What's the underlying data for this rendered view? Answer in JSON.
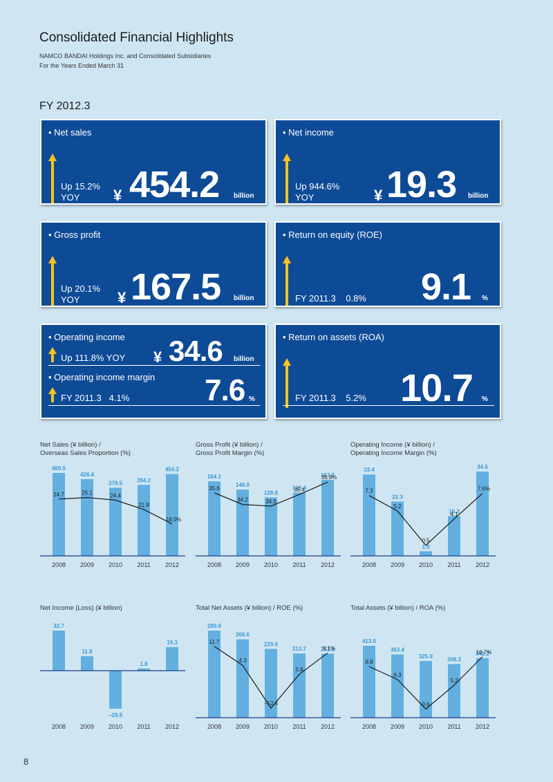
{
  "header": {
    "title": "Consolidated Financial Highlights",
    "subtitle_line1": "NAMCO BANDAI Holdings Inc. and Consolidated Subsidiaries",
    "subtitle_line2": "For the Years Ended March 31"
  },
  "fy_label": "FY 2012.3",
  "cards": {
    "net_sales": {
      "head": "• Net sales",
      "yoy1": "Up 15.2%",
      "yoy2": "YOY",
      "yen": "¥",
      "value": "454.2",
      "unit": "billion"
    },
    "net_income": {
      "head": "• Net income",
      "yoy1": "Up 944.6%",
      "yoy2": "YOY",
      "yen": "¥",
      "value": "19.3",
      "unit": "billion"
    },
    "gross_profit": {
      "head": "• Gross profit",
      "yoy1": "Up 20.1%",
      "yoy2": "YOY",
      "yen": "¥",
      "value": "167.5",
      "unit": "billion"
    },
    "roe": {
      "head": "• Return on equity (ROE)",
      "prev": "FY 2011.3    0.8%",
      "value": "9.1",
      "unit": "%"
    },
    "op_income": {
      "head": "• Operating income",
      "yoy": "Up 111.8% YOY",
      "yen": "¥",
      "value": "34.6",
      "unit": "billion",
      "margin_head": "• Operating income margin",
      "margin_prev": "FY 2011.3   4.1%",
      "margin_value": "7.6",
      "margin_unit": "%"
    },
    "roa": {
      "head": "• Return on assets (ROA)",
      "prev": "FY 2011.3    5.2%",
      "value": "10.7",
      "unit": "%"
    }
  },
  "colors": {
    "card_bg": "#0e4b97",
    "bar": "#62afe0",
    "arrow": "#f7c51b",
    "bar_label": "#3a97d4",
    "line": "#1a1a1a",
    "axis": "#1b3d8a"
  },
  "page_number": "8",
  "chart_data": [
    {
      "type": "bar",
      "title": "Net Sales (¥ billion) /",
      "title2": "Overseas Sales Proportion (%)",
      "categories": [
        "2008",
        "2009",
        "2010",
        "2011",
        "2012"
      ],
      "series": [
        {
          "values": [
            460.5,
            426.4,
            378.5,
            394.2,
            454.2
          ]
        },
        {
          "values": [
            24.7,
            25.1,
            24.4,
            21.9,
            18.0
          ]
        }
      ],
      "bar_labels": [
        "460.5",
        "426.4",
        "378.5",
        "394.2",
        "454.2"
      ],
      "line_labels": [
        "24.7",
        "25.1",
        "24.4",
        "21.9",
        "18.0%"
      ]
    },
    {
      "type": "bar",
      "title": "Gross Profit (¥ billion) /",
      "title2": "Gross Profit Margin (%)",
      "categories": [
        "2008",
        "2009",
        "2010",
        "2011",
        "2012"
      ],
      "series": [
        {
          "values": [
            164.1,
            146.0,
            128.8,
            139.4,
            167.5
          ]
        },
        {
          "values": [
            35.6,
            34.2,
            34.0,
            35.4,
            36.9
          ]
        }
      ],
      "bar_labels": [
        "164.1",
        "146.0",
        "128.8",
        "139.4",
        "167.5"
      ],
      "line_labels": [
        "35.6",
        "34.2",
        "34.0",
        "35.4",
        "36.9%"
      ]
    },
    {
      "type": "bar",
      "title": "Operating Income (¥ billion) /",
      "title2": "Operating Income Margin (%)",
      "categories": [
        "2008",
        "2009",
        "2010",
        "2011",
        "2012"
      ],
      "series": [
        {
          "values": [
            33.4,
            22.3,
            1.9,
            16.3,
            34.6
          ]
        },
        {
          "values": [
            7.3,
            5.2,
            0.5,
            4.1,
            7.6
          ]
        }
      ],
      "bar_labels": [
        "33.4",
        "22.3",
        "1.9",
        "16.3",
        "34.6"
      ],
      "line_labels": [
        "7.3",
        "5.2",
        "0.5",
        "4.1",
        "7.6%"
      ]
    },
    {
      "type": "bar",
      "title": "Net Income (Loss) (¥ billion)",
      "title2": "",
      "categories": [
        "2008",
        "2009",
        "2010",
        "2011",
        "2012"
      ],
      "series": [
        {
          "values": [
            32.7,
            11.8,
            -29.9,
            1.8,
            19.3
          ]
        }
      ],
      "bar_labels": [
        "32.7",
        "11.8",
        "−29.9",
        "1.8",
        "19.3"
      ],
      "line_labels": []
    },
    {
      "type": "bar",
      "title": "Total Net Assets (¥ billion) / ROE (%)",
      "title2": "",
      "categories": [
        "2008",
        "2009",
        "2010",
        "2011",
        "2012"
      ],
      "series": [
        {
          "values": [
            289.9,
            260.6,
            229.0,
            213.7,
            213.1
          ]
        },
        {
          "values": [
            11.7,
            4.3,
            -12.4,
            0.8,
            9.1
          ]
        }
      ],
      "bar_labels": [
        "289.9",
        "260.6",
        "229.0",
        "213.7",
        "213.1"
      ],
      "line_labels": [
        "11.7",
        "4.3",
        "−12.4",
        "0.8",
        "9.1%"
      ]
    },
    {
      "type": "bar",
      "title": "Total Assets (¥ billion) / ROA (%)",
      "title2": "",
      "categories": [
        "2008",
        "2009",
        "2010",
        "2011",
        "2012"
      ],
      "series": [
        {
          "values": [
            413.0,
            363.4,
            325.9,
            308.3,
            342.2
          ]
        },
        {
          "values": [
            8.8,
            6.3,
            0.6,
            5.2,
            10.7
          ]
        }
      ],
      "bar_labels": [
        "413.0",
        "363.4",
        "325.9",
        "308.3",
        "342.2"
      ],
      "line_labels": [
        "8.8",
        "6.3",
        "0.6",
        "5.2",
        "10.7%"
      ]
    }
  ]
}
